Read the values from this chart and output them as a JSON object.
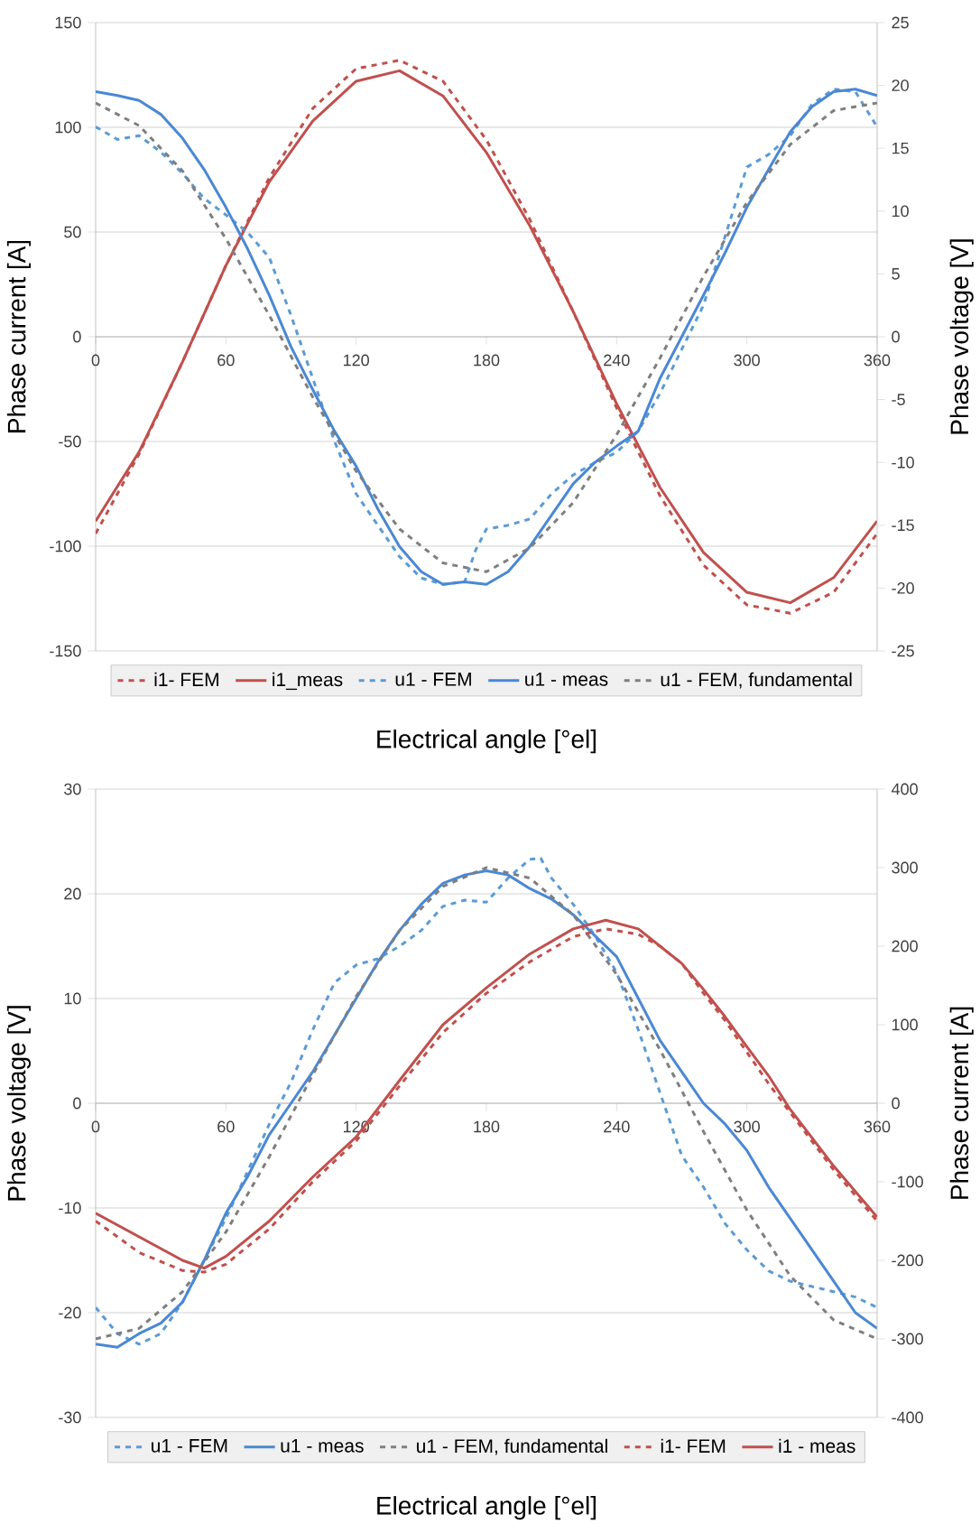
{
  "chart_data": [
    {
      "type": "line",
      "xlabel": "Electrical angle [°el]",
      "ylabel": "Phase current [A]",
      "y2label": "Phase voltage  [V]",
      "xlim": [
        0,
        360
      ],
      "xticks": [
        0,
        60,
        120,
        180,
        240,
        300,
        360
      ],
      "ylim": [
        -150,
        150
      ],
      "yticks": [
        -150,
        -100,
        -50,
        0,
        50,
        100,
        150
      ],
      "y2lim": [
        -25,
        25
      ],
      "y2ticks": [
        -25,
        -20,
        -15,
        -10,
        -5,
        0,
        5,
        10,
        15,
        20,
        25
      ],
      "grid": "y",
      "legend": "bottom",
      "series": [
        {
          "name": "i1- FEM",
          "color": "#c0504d",
          "line_style": "dashed",
          "x": [
            0,
            20,
            40,
            60,
            80,
            100,
            120,
            140,
            160,
            180,
            200,
            220,
            240,
            260,
            280,
            300,
            320,
            340,
            360
          ],
          "values": [
            -94,
            -56,
            -12,
            34,
            76,
            109,
            128,
            132,
            122,
            94,
            56,
            12,
            -34,
            -76,
            -109,
            -128,
            -132,
            -122,
            -94
          ]
        },
        {
          "name": "i1_meas",
          "color": "#c0504d",
          "line_style": "solid",
          "x": [
            0,
            20,
            40,
            60,
            80,
            100,
            120,
            140,
            160,
            180,
            200,
            220,
            240,
            260,
            280,
            300,
            320,
            340,
            360
          ],
          "values": [
            -88,
            -55,
            -12,
            34,
            74,
            103,
            122,
            127,
            115,
            88,
            53,
            12,
            -32,
            -72,
            -103,
            -122,
            -127,
            -115,
            -88
          ]
        },
        {
          "name": "u1 - FEM",
          "color": "#5b9bd5",
          "line_style": "dashed",
          "axis": "y2",
          "x": [
            0,
            10,
            20,
            30,
            40,
            50,
            60,
            70,
            80,
            90,
            100,
            110,
            120,
            130,
            140,
            150,
            160,
            170,
            175,
            180,
            190,
            200,
            210,
            220,
            230,
            240,
            250,
            260,
            270,
            280,
            290,
            300,
            310,
            320,
            330,
            340,
            350,
            360
          ],
          "values": [
            16.7,
            15.7,
            16,
            14.7,
            13,
            11,
            9.7,
            8.3,
            6.3,
            1.7,
            -3.3,
            -8.3,
            -12.5,
            -15,
            -17.5,
            -19.2,
            -19.7,
            -19.5,
            -17,
            -15.3,
            -15,
            -14.5,
            -12.5,
            -11,
            -10,
            -9.2,
            -7.5,
            -4.5,
            -1,
            2.5,
            8,
            13.5,
            14.5,
            16,
            18.5,
            19.7,
            19.5,
            16.7
          ]
        },
        {
          "name": "u1 - meas",
          "color": "#4a88d4",
          "line_style": "solid",
          "axis": "y2",
          "x": [
            0,
            10,
            20,
            30,
            40,
            50,
            60,
            70,
            80,
            90,
            100,
            110,
            120,
            130,
            140,
            150,
            160,
            170,
            180,
            190,
            200,
            210,
            220,
            230,
            240,
            250,
            260,
            270,
            280,
            290,
            300,
            310,
            320,
            330,
            340,
            350,
            360
          ],
          "values": [
            19.5,
            19.2,
            18.8,
            17.7,
            15.8,
            13.3,
            10.3,
            7,
            3.3,
            -0.8,
            -4.2,
            -7.5,
            -10.3,
            -13.7,
            -16.7,
            -18.7,
            -19.7,
            -19.5,
            -19.7,
            -18.7,
            -16.7,
            -14.2,
            -11.7,
            -10,
            -8.7,
            -7.5,
            -3.3,
            0,
            3.3,
            6.7,
            10.3,
            13.3,
            16.3,
            18.3,
            19.5,
            19.7,
            19.2
          ]
        },
        {
          "name": "u1 - FEM, fundamental",
          "color": "#7f7f7f",
          "line_style": "dashed",
          "axis": "y2",
          "x": [
            0,
            20,
            40,
            60,
            80,
            100,
            120,
            140,
            160,
            180,
            200,
            220,
            240,
            260,
            280,
            300,
            320,
            340,
            360
          ],
          "values": [
            18.6,
            16.8,
            13.2,
            7.8,
            1.7,
            -4.8,
            -10.7,
            -15.3,
            -18,
            -18.7,
            -16.8,
            -13.2,
            -7.8,
            -1.7,
            4.8,
            10.7,
            15.3,
            18,
            18.6
          ]
        }
      ]
    },
    {
      "type": "line",
      "xlabel": "Electrical angle [°el]",
      "ylabel": "Phase voltage  [V]",
      "y2label": "Phase current [A]",
      "xlim": [
        0,
        360
      ],
      "xticks": [
        0,
        60,
        120,
        180,
        240,
        300,
        360
      ],
      "ylim": [
        -30,
        30
      ],
      "yticks": [
        -30,
        -20,
        -10,
        0,
        10,
        20,
        30
      ],
      "y2lim": [
        -400,
        400
      ],
      "y2ticks": [
        -400,
        -300,
        -200,
        -100,
        0,
        100,
        200,
        300,
        400
      ],
      "grid": "y",
      "legend": "bottom",
      "series": [
        {
          "name": "u1 - FEM",
          "color": "#5b9bd5",
          "line_style": "dashed",
          "x": [
            0,
            10,
            20,
            30,
            40,
            50,
            60,
            70,
            80,
            90,
            100,
            110,
            120,
            130,
            140,
            150,
            160,
            170,
            180,
            190,
            200,
            205,
            210,
            220,
            230,
            240,
            250,
            260,
            270,
            280,
            290,
            300,
            310,
            320,
            330,
            340,
            350,
            360
          ],
          "values": [
            -19.5,
            -22,
            -23,
            -22,
            -19,
            -15,
            -11,
            -6.5,
            -2,
            2,
            7,
            11.5,
            13.2,
            13.8,
            15,
            16.5,
            18.8,
            19.4,
            19.2,
            21.5,
            23.3,
            23.4,
            21.5,
            19,
            16,
            12.5,
            7,
            1,
            -5,
            -8,
            -11.5,
            -14,
            -16,
            -17,
            -17.5,
            -18,
            -18.5,
            -19.5
          ]
        },
        {
          "name": "u1 - meas",
          "color": "#4a88d4",
          "line_style": "solid",
          "x": [
            0,
            10,
            20,
            30,
            40,
            50,
            60,
            70,
            80,
            90,
            100,
            110,
            120,
            130,
            140,
            150,
            160,
            170,
            180,
            190,
            200,
            210,
            220,
            230,
            240,
            250,
            260,
            270,
            280,
            290,
            300,
            310,
            320,
            330,
            340,
            350,
            360
          ],
          "values": [
            -23,
            -23.3,
            -22,
            -21,
            -19,
            -15,
            -10.5,
            -7,
            -3,
            0,
            3,
            6.5,
            10,
            13.5,
            16.5,
            19,
            21,
            21.8,
            22.2,
            21.8,
            20.5,
            19.5,
            18,
            16,
            14,
            10,
            6,
            3,
            0,
            -2,
            -4.5,
            -8,
            -11,
            -14,
            -17,
            -20,
            -21.5
          ]
        },
        {
          "name": "u1 - FEM, fundamental",
          "color": "#7f7f7f",
          "line_style": "dashed",
          "x": [
            0,
            20,
            40,
            60,
            80,
            100,
            120,
            140,
            160,
            180,
            200,
            220,
            240,
            260,
            280,
            300,
            320,
            340,
            360
          ],
          "values": [
            -22.5,
            -21.5,
            -18,
            -12.3,
            -5.1,
            2.7,
            10.2,
            16.5,
            20.7,
            22.5,
            21.5,
            18,
            12.3,
            5.1,
            -2.7,
            -10.2,
            -16.5,
            -20.7,
            -22.5
          ]
        },
        {
          "name": "i1- FEM",
          "color": "#c0504d",
          "line_style": "dashed",
          "axis": "y2",
          "x": [
            0,
            20,
            40,
            50,
            60,
            80,
            100,
            120,
            140,
            160,
            180,
            200,
            220,
            235,
            250,
            260,
            270,
            280,
            290,
            300,
            310,
            320,
            340,
            360
          ],
          "values": [
            -150,
            -190,
            -213,
            -215,
            -205,
            -160,
            -100,
            -48,
            22,
            90,
            140,
            180,
            212,
            222,
            215,
            200,
            178,
            140,
            105,
            65,
            25,
            -12,
            -85,
            -150
          ]
        },
        {
          "name": "i1 - meas",
          "color": "#c0504d",
          "line_style": "solid",
          "axis": "y2",
          "x": [
            0,
            20,
            40,
            50,
            60,
            80,
            100,
            120,
            140,
            160,
            180,
            200,
            220,
            235,
            250,
            260,
            270,
            280,
            290,
            300,
            310,
            320,
            340,
            360
          ],
          "values": [
            -140,
            -170,
            -200,
            -210,
            -195,
            -150,
            -94,
            -43,
            29,
            100,
            147,
            190,
            222,
            233,
            222,
            200,
            178,
            145,
            110,
            72,
            35,
            -8,
            -80,
            -145
          ]
        }
      ]
    }
  ]
}
